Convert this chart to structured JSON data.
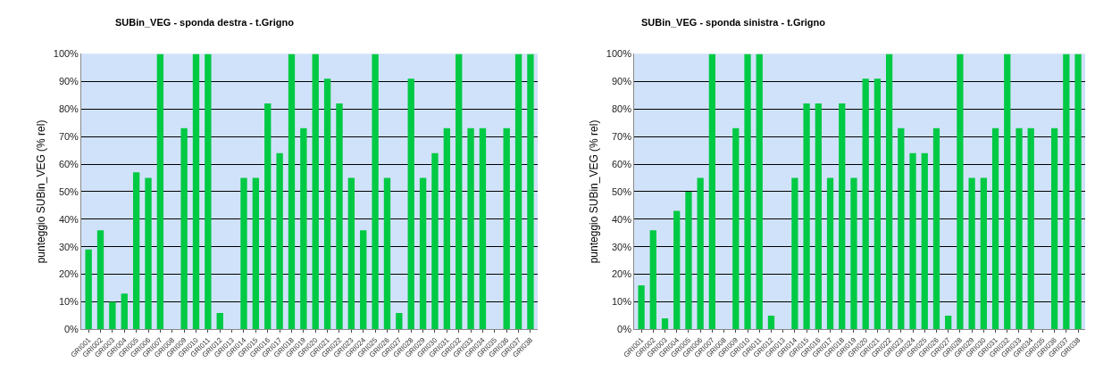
{
  "chart_data": [
    {
      "type": "bar",
      "title": "SUBin_VEG - sponda destra - t.Grigno",
      "ylabel": "punteggio SUBin_VEG (% rel)",
      "categories": [
        "GRI001",
        "GRI002",
        "GRI003",
        "GRI004",
        "GRI005",
        "GRI006",
        "GRI007",
        "GRI008",
        "GRI009",
        "GRI010",
        "GRI011",
        "GRI012",
        "GRI013",
        "GRI014",
        "GRI015",
        "GRI016",
        "GRI017",
        "GRI018",
        "GRI019",
        "GRI020",
        "GRI021",
        "GRI022",
        "GRI023",
        "GRI024",
        "GRI025",
        "GRI026",
        "GRI027",
        "GRI028",
        "GRI029",
        "GRI030",
        "GRI031",
        "GRI032",
        "GRI033",
        "GRI034",
        "GRI035",
        "GRI036",
        "GRI037",
        "GRI038"
      ],
      "values": [
        29,
        36,
        10,
        13,
        57,
        55,
        100,
        0,
        73,
        100,
        100,
        6,
        0,
        55,
        55,
        82,
        64,
        100,
        73,
        100,
        91,
        82,
        55,
        36,
        100,
        55,
        6,
        91,
        55,
        64,
        73,
        100,
        73,
        73,
        0,
        73,
        100,
        100
      ],
      "color": "#00c944",
      "ylim": [
        0,
        100
      ],
      "yticks": [
        {
          "value": 0,
          "label": "0%"
        },
        {
          "value": 10,
          "label": "10%"
        },
        {
          "value": 20,
          "label": "20%"
        },
        {
          "value": 30,
          "label": "30%"
        },
        {
          "value": 40,
          "label": "40%"
        },
        {
          "value": 50,
          "label": "50%"
        },
        {
          "value": 60,
          "label": "60%"
        },
        {
          "value": 70,
          "label": "70%"
        },
        {
          "value": 80,
          "label": "80%"
        },
        {
          "value": 90,
          "label": "90%"
        },
        {
          "value": 100,
          "label": "100%"
        }
      ],
      "grid": "y"
    },
    {
      "type": "bar",
      "title": "SUBin_VEG - sponda sinistra - t.Grigno",
      "ylabel": "punteggio SUBin_VEG (% rel)",
      "categories": [
        "GRI001",
        "GRI002",
        "GRI003",
        "GRI004",
        "GRI005",
        "GRI006",
        "GRI007",
        "GRI008",
        "GRI009",
        "GRI010",
        "GRI011",
        "GRI012",
        "GRI013",
        "GRI014",
        "GRI015",
        "GRI016",
        "GRI017",
        "GRI018",
        "GRI019",
        "GRI020",
        "GRI021",
        "GRI022",
        "GRI023",
        "GRI024",
        "GRI025",
        "GRI026",
        "GRI027",
        "GRI028",
        "GRI029",
        "GRI030",
        "GRI031",
        "GRI032",
        "GRI033",
        "GRI034",
        "GRI035",
        "GRI036",
        "GRI037",
        "GRI038"
      ],
      "values": [
        16,
        36,
        4,
        43,
        50,
        55,
        100,
        0,
        73,
        100,
        100,
        5,
        0,
        55,
        82,
        82,
        55,
        82,
        55,
        91,
        91,
        100,
        73,
        64,
        64,
        73,
        5,
        100,
        55,
        55,
        73,
        100,
        73,
        73,
        0,
        73,
        100,
        100
      ],
      "color": "#00c944",
      "ylim": [
        0,
        100
      ],
      "yticks": [
        {
          "value": 0,
          "label": "0%"
        },
        {
          "value": 10,
          "label": "10%"
        },
        {
          "value": 20,
          "label": "20%"
        },
        {
          "value": 30,
          "label": "30%"
        },
        {
          "value": 40,
          "label": "40%"
        },
        {
          "value": 50,
          "label": "50%"
        },
        {
          "value": 60,
          "label": "60%"
        },
        {
          "value": 70,
          "label": "70%"
        },
        {
          "value": 80,
          "label": "80%"
        },
        {
          "value": 90,
          "label": "90%"
        },
        {
          "value": 100,
          "label": "100%"
        }
      ],
      "grid": "y"
    }
  ]
}
